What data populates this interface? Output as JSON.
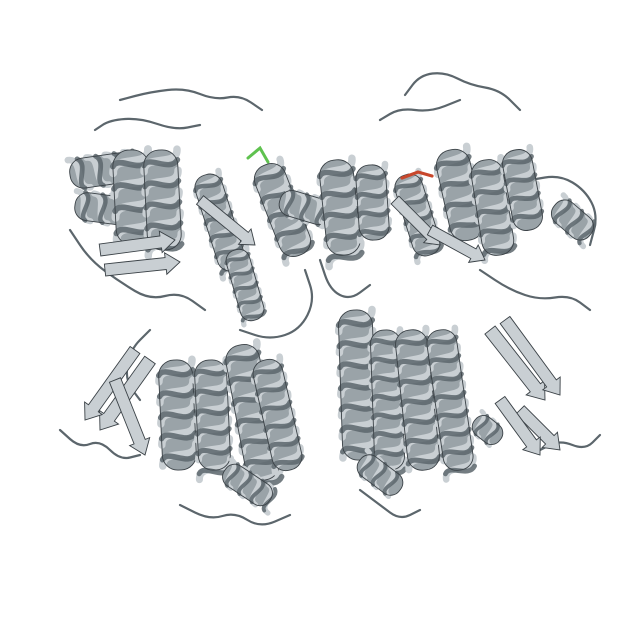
{
  "image": {
    "background": "#ffffff",
    "subject": "protein-ribbon-dimer",
    "colors": {
      "ribbon_light": "#c9cfd3",
      "ribbon_mid": "#9aa3a8",
      "ribbon_dark": "#5c666c",
      "ribbon_shadow": "#3b4247",
      "highlight_green": "#5fc24f",
      "highlight_red": "#c8472c"
    }
  }
}
